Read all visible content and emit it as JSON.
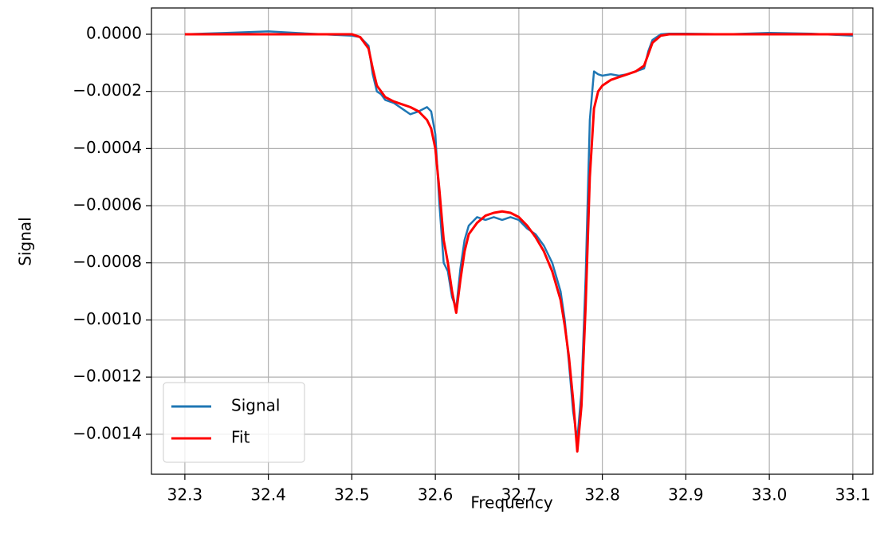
{
  "chart_data": {
    "type": "line",
    "x_label": "Frequency",
    "y_label": "Signal",
    "x": [
      32.3,
      32.35,
      32.4,
      32.45,
      32.5,
      32.51,
      32.52,
      32.525,
      32.53,
      32.535,
      32.54,
      32.55,
      32.56,
      32.57,
      32.58,
      32.59,
      32.595,
      32.6,
      32.605,
      32.61,
      32.615,
      32.62,
      32.625,
      32.63,
      32.635,
      32.64,
      32.65,
      32.66,
      32.67,
      32.68,
      32.69,
      32.7,
      32.71,
      32.72,
      32.73,
      32.74,
      32.75,
      32.755,
      32.76,
      32.765,
      32.77,
      32.775,
      32.78,
      32.785,
      32.79,
      32.795,
      32.8,
      32.81,
      32.82,
      32.83,
      32.84,
      32.85,
      32.855,
      32.86,
      32.87,
      32.88,
      32.9,
      32.95,
      33.0,
      33.05,
      33.1
    ],
    "series": [
      {
        "name": "Signal",
        "color": "#1f77b4",
        "values": [
          0,
          5e-06,
          1e-05,
          2e-06,
          -5e-06,
          -1e-05,
          -4e-05,
          -0.00014,
          -0.0002,
          -0.00021,
          -0.00023,
          -0.00024,
          -0.00026,
          -0.00028,
          -0.00027,
          -0.000255,
          -0.00027,
          -0.00035,
          -0.0006,
          -0.0008,
          -0.00083,
          -0.00092,
          -0.00096,
          -0.00082,
          -0.00072,
          -0.00067,
          -0.00064,
          -0.00065,
          -0.00064,
          -0.00065,
          -0.00064,
          -0.00065,
          -0.00068,
          -0.0007,
          -0.00074,
          -0.0008,
          -0.0009,
          -0.001,
          -0.00115,
          -0.00132,
          -0.00142,
          -0.00125,
          -0.00085,
          -0.0003,
          -0.00013,
          -0.00014,
          -0.000145,
          -0.00014,
          -0.000145,
          -0.00014,
          -0.00013,
          -0.00012,
          -6e-05,
          -2e-05,
          0,
          2e-06,
          2e-06,
          0,
          5e-06,
          2e-06,
          -5e-06
        ]
      },
      {
        "name": "Fit",
        "color": "#ff0000",
        "values": [
          0,
          0,
          0,
          0,
          0,
          -1e-05,
          -5e-05,
          -0.00012,
          -0.00018,
          -0.0002,
          -0.00022,
          -0.000235,
          -0.000245,
          -0.000255,
          -0.00027,
          -0.0003,
          -0.00033,
          -0.0004,
          -0.00055,
          -0.00072,
          -0.0008,
          -0.0009,
          -0.000975,
          -0.00086,
          -0.00076,
          -0.0007,
          -0.00066,
          -0.000635,
          -0.000625,
          -0.00062,
          -0.000625,
          -0.00064,
          -0.00067,
          -0.00071,
          -0.00076,
          -0.00083,
          -0.00093,
          -0.00102,
          -0.00113,
          -0.00128,
          -0.00146,
          -0.0013,
          -0.00095,
          -0.0005,
          -0.00026,
          -0.0002,
          -0.00018,
          -0.00016,
          -0.00015,
          -0.00014,
          -0.00013,
          -0.00011,
          -7e-05,
          -3e-05,
          -5e-06,
          0,
          0,
          0,
          0,
          0,
          0
        ]
      }
    ],
    "xlim": [
      32.26,
      33.124
    ],
    "ylim": [
      -0.00154,
      9.2e-05
    ],
    "xticks": [
      32.3,
      32.4,
      32.5,
      32.6,
      32.7,
      32.8,
      32.9,
      {
        "value": 33.0,
        "label": "33.0"
      },
      33.1
    ],
    "yticks": [
      {
        "value": 0,
        "label": "0.0000"
      },
      {
        "value": -0.0002,
        "label": "−0.0002"
      },
      {
        "value": -0.0004,
        "label": "−0.0004"
      },
      {
        "value": -0.0006,
        "label": "−0.0006"
      },
      {
        "value": -0.0008,
        "label": "−0.0008"
      },
      {
        "value": -0.001,
        "label": "−0.0010"
      },
      {
        "value": -0.0012,
        "label": "−0.0012"
      },
      {
        "value": -0.0014,
        "label": "−0.0014"
      }
    ],
    "grid": true,
    "legend": "lower left"
  }
}
